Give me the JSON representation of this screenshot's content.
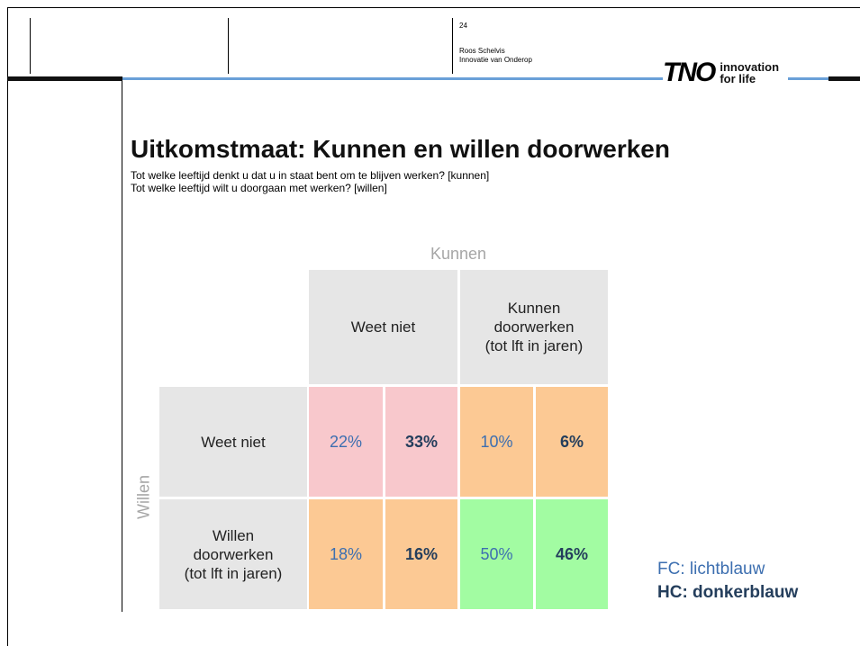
{
  "header": {
    "page_number": "24",
    "author": "Roos Schelvis",
    "project": "Innovatie van Onderop",
    "logo": {
      "brand": "TNO",
      "tagline_1": "innovation",
      "tagline_2": "for life"
    }
  },
  "title": "Uitkomstmaat: Kunnen en willen doorwerken",
  "subtitle_lines": [
    "Tot welke leeftijd denkt u dat u in staat bent om te blijven werken? [kunnen]",
    "Tot welke leeftijd wilt u doorgaan met werken? [willen]"
  ],
  "table": {
    "column_axis": "Kunnen",
    "row_axis": "Willen",
    "columns": [
      {
        "lines": [
          "Weet niet"
        ]
      },
      {
        "lines": [
          "Kunnen",
          "doorwerken",
          "(tot lft in jaren)"
        ]
      }
    ],
    "rows": [
      {
        "lines": [
          "Weet niet"
        ],
        "cells": [
          "22%",
          "33%",
          "10%",
          "6%"
        ]
      },
      {
        "lines": [
          "Willen",
          "doorwerken",
          "(tot lft in jaren)"
        ],
        "cells": [
          "18%",
          "16%",
          "50%",
          "46%"
        ]
      }
    ]
  },
  "legend": [
    "FC: lichtblauw",
    "HC: donkerblauw"
  ]
}
